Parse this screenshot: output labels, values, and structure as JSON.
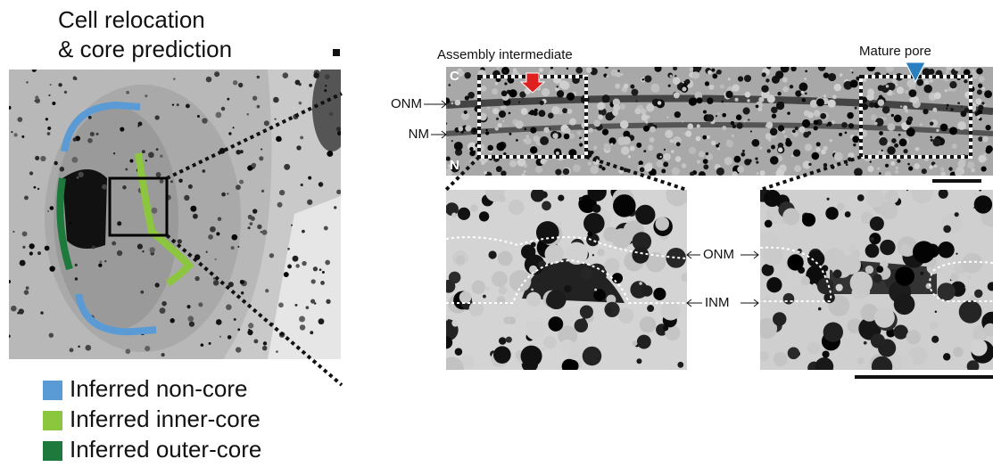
{
  "figure": {
    "title": [
      "Cell relocation",
      "& core prediction"
    ],
    "legend": [
      {
        "label": "Inferred non-core",
        "color": "#5b9bd5"
      },
      {
        "label": "Inferred inner-core",
        "color": "#8cc63f"
      },
      {
        "label": "Inferred outer-core",
        "color": "#1e7a3c"
      }
    ],
    "top_panel": {
      "assembly_label": "Assembly intermediate",
      "mature_label": "Mature pore",
      "onm": "ONM",
      "nm": "NM",
      "cytoplasm": "C",
      "nucleus": "N"
    },
    "zoom_labels": {
      "onm": "ONM",
      "inm": "INM"
    }
  }
}
